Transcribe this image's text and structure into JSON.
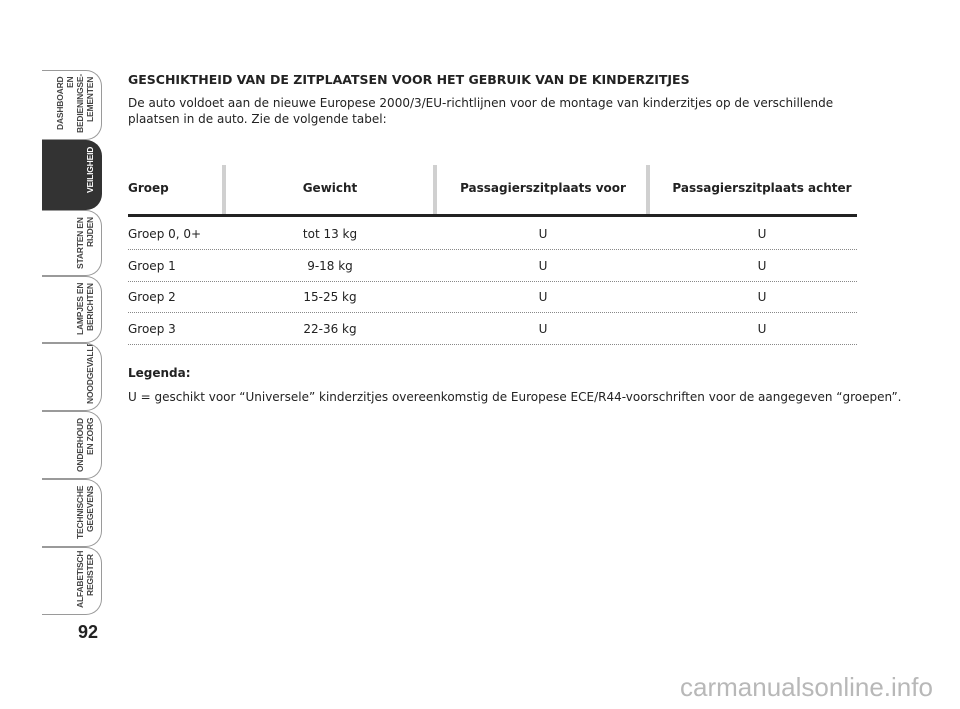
{
  "sidebar": {
    "tabs": [
      {
        "lines": [
          "DASHBOARD EN",
          "BEDIENINGSE-",
          "LEMENTEN"
        ]
      },
      {
        "lines": [
          "VEILIGHEID"
        ],
        "active": true
      },
      {
        "lines": [
          "STARTEN EN",
          "RIJDEN"
        ]
      },
      {
        "lines": [
          "LAMPJES EN",
          "BERICHTEN"
        ]
      },
      {
        "lines": [
          "NOODGEVALLEN"
        ]
      },
      {
        "lines": [
          "ONDERHOUD",
          "EN ZORG"
        ]
      },
      {
        "lines": [
          "TECHNISCHE",
          "GEGEVENS"
        ]
      },
      {
        "lines": [
          "ALFABETISCH",
          "REGISTER"
        ]
      }
    ],
    "page_number": "92"
  },
  "section": {
    "title": "GESCHIKTHEID VAN DE ZITPLAATSEN VOOR HET GEBRUIK VAN DE KINDERZITJES",
    "intro": "De auto voldoet aan de nieuwe Europese 2000/3/EU-richtlijnen voor de montage van kinderzitjes op de verschillende plaatsen in de auto. Zie de volgende tabel:"
  },
  "table": {
    "header": [
      "Groep",
      "Gewicht",
      "Passagierszitplaats voor",
      "Passagierszitplaats achter"
    ],
    "rows": [
      [
        "Groep 0, 0+",
        "tot 13 kg",
        "U",
        "U"
      ],
      [
        "Groep 1",
        "9-18 kg",
        "U",
        "U"
      ],
      [
        "Groep 2",
        "15-25 kg",
        "U",
        "U"
      ],
      [
        "Groep 3",
        "22-36 kg",
        "U",
        "U"
      ]
    ]
  },
  "legend": {
    "title": "Legenda:",
    "text": "U = geschikt voor “Universele” kinderzitjes overeenkomstig de Europese ECE/R44-voorschriften voor de aangegeven “groepen”."
  },
  "watermark": "carmanualsonline.info"
}
